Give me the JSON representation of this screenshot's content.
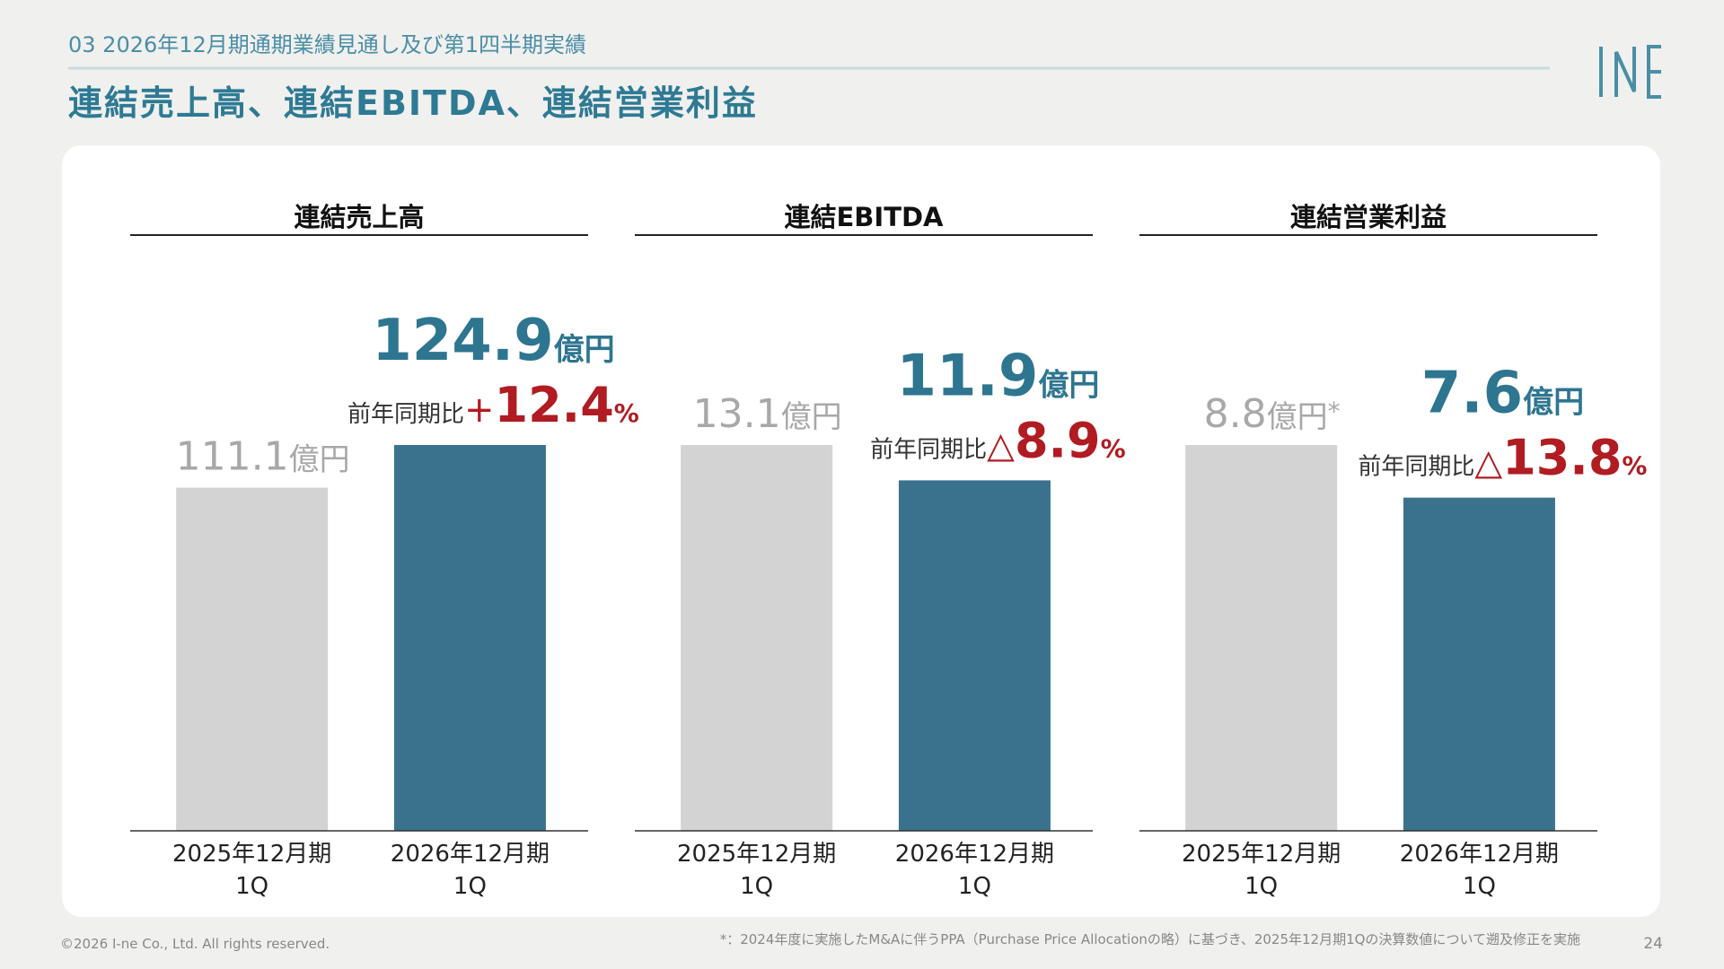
{
  "header": {
    "section": "03 2026年12月期通期業績見通し及び第1四半期実績",
    "title": "連結売上高、連結EBITDA、連結営業利益"
  },
  "chart_data": [
    {
      "type": "bar",
      "title": "連結売上高",
      "categories": [
        [
          "2025年12月期",
          "1Q"
        ],
        [
          "2026年12月期",
          "1Q"
        ]
      ],
      "values": [
        111.1,
        124.9
      ],
      "unit": "億円",
      "colors": [
        "#d3d3d3",
        "#3a728e"
      ],
      "change": {
        "label": "前年同期比",
        "sign": "+",
        "value": 12.4,
        "unit": "%"
      }
    },
    {
      "type": "bar",
      "title": "連結EBITDA",
      "categories": [
        [
          "2025年12月期",
          "1Q"
        ],
        [
          "2026年12月期",
          "1Q"
        ]
      ],
      "values": [
        13.1,
        11.9
      ],
      "unit": "億円",
      "colors": [
        "#d3d3d3",
        "#3a728e"
      ],
      "change": {
        "label": "前年同期比",
        "sign": "△",
        "value": 8.9,
        "unit": "%"
      }
    },
    {
      "type": "bar",
      "title": "連結営業利益",
      "categories": [
        [
          "2025年12月期",
          "1Q"
        ],
        [
          "2026年12月期",
          "1Q"
        ]
      ],
      "values": [
        8.8,
        7.6
      ],
      "unit": "億円",
      "unit_note": "*",
      "colors": [
        "#d3d3d3",
        "#3a728e"
      ],
      "change": {
        "label": "前年同期比",
        "sign": "△",
        "value": 13.8,
        "unit": "%"
      }
    }
  ],
  "footer": {
    "copyright": "©2026 I-ne Co., Ltd. All rights reserved.",
    "footnote": "*：2024年度に実施したM&Aに伴うPPA（Purchase Price Allocationの略）に基づき、2025年12月期1Qの決算数値について遡及修正を実施",
    "page": 24
  }
}
